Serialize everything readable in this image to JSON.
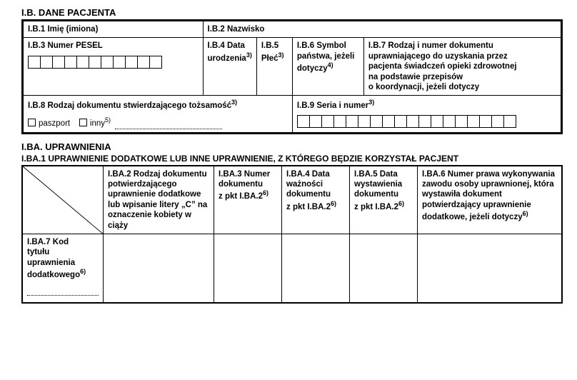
{
  "sectionIB": {
    "title": "I.B. DANE PACJENTA",
    "ib1": "I.B.1 Imię (imiona)",
    "ib2": "I.B.2 Nazwisko",
    "ib3": "I.B.3 Numer PESEL",
    "ib4_a": "I.B.4 Data",
    "ib4_b": "urodzenia",
    "ib4_sup": "3)",
    "ib5_a": "I.B.5",
    "ib5_b": "Płeć",
    "ib5_sup": "3)",
    "ib6_a": "I.B.6 Symbol",
    "ib6_b": "państwa, jeżeli",
    "ib6_c": "dotyczy",
    "ib6_sup": "4)",
    "ib7_a": "I.B.7 Rodzaj i numer dokumentu",
    "ib7_b": "uprawniającego do uzyskania przez",
    "ib7_c": "pacjenta świadczeń opieki zdrowotnej",
    "ib7_d": "na podstawie przepisów",
    "ib7_e": "o koordynacji, jeżeli dotyczy",
    "ib8": "I.B.8 Rodzaj dokumentu stwierdzającego tożsamość",
    "ib8_sup": "3)",
    "ib8_opt1": "paszport",
    "ib8_opt2": "inny",
    "ib8_opt2_sup": "5)",
    "ib9": "I.B.9 Seria i numer",
    "ib9_sup": "3)",
    "pesel_cells": 11,
    "serial_cells": 18
  },
  "sectionIBA": {
    "title": "I.BA. UPRAWNIENIA",
    "sub": "I.BA.1 UPRAWNIENIE DODATKOWE LUB INNE UPRAWNIENIE, Z KTÓREGO BĘDZIE KORZYSTAŁ PACJENT",
    "iba2": "I.BA.2 Rodzaj dokumentu potwierdzającego uprawnienie dodatkowe lub wpisanie litery „C” na oznaczenie kobiety w ciąży",
    "iba3_a": "I.BA.3 Numer",
    "iba3_b": "dokumentu",
    "iba3_c": "z pkt I.BA.2",
    "iba3_sup": "6)",
    "iba4_a": "I.BA.4 Data",
    "iba4_b": "ważności",
    "iba4_c": "dokumentu",
    "iba4_d": "z pkt I.BA.2",
    "iba4_sup": "6)",
    "iba5_a": "I.BA.5 Data",
    "iba5_b": "wystawienia",
    "iba5_c": "dokumentu",
    "iba5_d": "z pkt I.BA.2",
    "iba5_sup": "6)",
    "iba6": "I.BA.6 Numer prawa wykonywania zawodu osoby uprawnionej, która wystawiła dokument potwierdzający uprawnienie dodatkowe, jeżeli dotyczy",
    "iba6_sup": "6)",
    "iba7_a": "I.BA.7 Kod",
    "iba7_b": "tytułu",
    "iba7_c": "uprawnienia",
    "iba7_d": "dodatkowego",
    "iba7_sup": "6)"
  }
}
